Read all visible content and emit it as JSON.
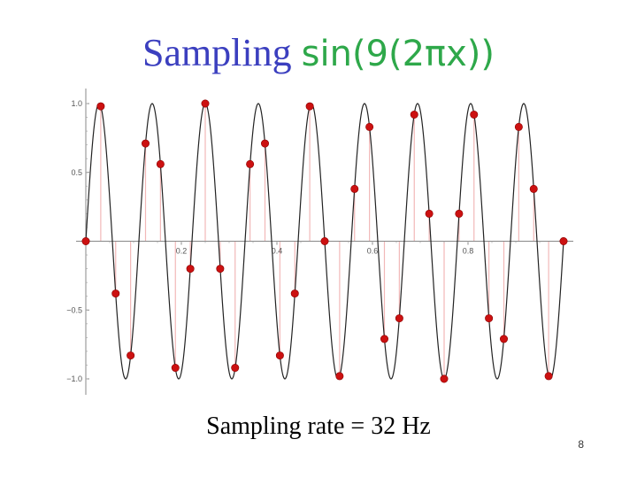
{
  "slide": {
    "title_word": "Sampling",
    "title_function": "sin(9(2πx))",
    "caption": "Sampling rate = 32 Hz",
    "page_number": "8"
  },
  "chart_data": {
    "type": "line",
    "title": "Sampling sin(9(2πx))",
    "xlabel": "",
    "ylabel": "",
    "xlim": [
      0,
      1
    ],
    "ylim": [
      -1,
      1
    ],
    "x_ticks": [
      0.2,
      0.4,
      0.6,
      0.8
    ],
    "x_tick_labels": [
      "0.2",
      "0.4",
      "0.6",
      "0.8"
    ],
    "y_ticks": [
      1.0,
      0.5,
      -0.5,
      -1.0
    ],
    "y_tick_labels": [
      "1.0",
      "0.5",
      "−0.5",
      "−1.0"
    ],
    "grid": false,
    "series": [
      {
        "kind": "continuous",
        "function": "sin(9(2πx))",
        "frequency": 9,
        "color": "#222222"
      },
      {
        "kind": "samples",
        "sampling_rate_hz": 32,
        "color": "#cc1111",
        "stem_color": "#f2b8b8",
        "x": [
          0,
          0.03125,
          0.0625,
          0.09375,
          0.125,
          0.15625,
          0.1875,
          0.21875,
          0.25,
          0.28125,
          0.3125,
          0.34375,
          0.375,
          0.40625,
          0.4375,
          0.46875,
          0.5,
          0.53125,
          0.5625,
          0.59375,
          0.625,
          0.65625,
          0.6875,
          0.71875,
          0.75,
          0.78125,
          0.8125,
          0.84375,
          0.875,
          0.90625,
          0.9375,
          0.96875,
          1.0
        ],
        "y": [
          0,
          0.98,
          -0.38,
          -0.83,
          0.71,
          0.56,
          -0.92,
          -0.2,
          1.0,
          -0.2,
          -0.92,
          0.56,
          0.71,
          -0.83,
          -0.38,
          0.98,
          0,
          -0.98,
          0.38,
          0.83,
          -0.71,
          -0.56,
          0.92,
          0.2,
          -1.0,
          0.2,
          0.92,
          -0.56,
          -0.71,
          0.83,
          0.38,
          -0.98,
          0
        ]
      }
    ]
  }
}
